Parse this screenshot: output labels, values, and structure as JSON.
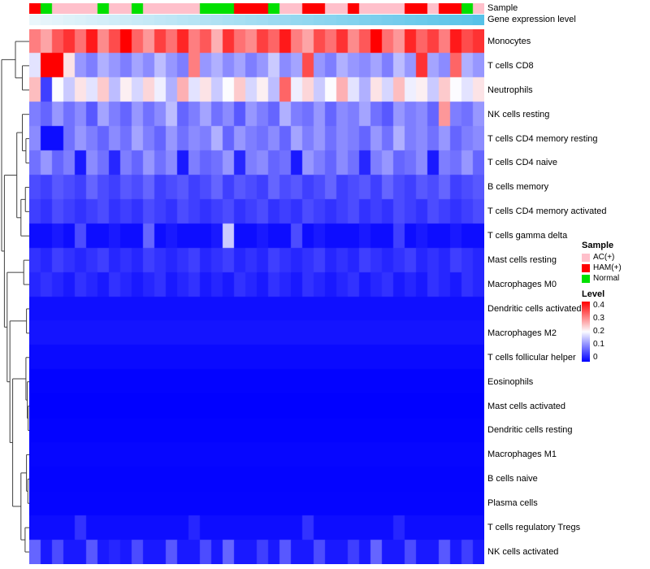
{
  "annotations": {
    "sample_label": "Sample",
    "gene_label": "Gene expression level",
    "sample_values": [
      "HAM(+)",
      "Normal",
      "AC(+)",
      "AC(+)",
      "AC(+)",
      "AC(+)",
      "Normal",
      "AC(+)",
      "AC(+)",
      "Normal",
      "AC(+)",
      "AC(+)",
      "AC(+)",
      "AC(+)",
      "AC(+)",
      "Normal",
      "Normal",
      "Normal",
      "HAM(+)",
      "HAM(+)",
      "HAM(+)",
      "Normal",
      "AC(+)",
      "AC(+)",
      "HAM(+)",
      "HAM(+)",
      "AC(+)",
      "AC(+)",
      "HAM(+)",
      "AC(+)",
      "AC(+)",
      "AC(+)",
      "AC(+)",
      "HAM(+)",
      "HAM(+)",
      "AC(+)",
      "HAM(+)",
      "HAM(+)",
      "Normal",
      "AC(+)"
    ],
    "gene_values": [
      0,
      0.03,
      0.05,
      0.08,
      0.1,
      0.13,
      0.15,
      0.18,
      0.2,
      0.23,
      0.25,
      0.28,
      0.3,
      0.33,
      0.35,
      0.38,
      0.4,
      0.43,
      0.45,
      0.48,
      0.5,
      0.53,
      0.55,
      0.58,
      0.6,
      0.63,
      0.65,
      0.68,
      0.7,
      0.73,
      0.75,
      0.78,
      0.8,
      0.83,
      0.85,
      0.88,
      0.9,
      0.93,
      0.95,
      1
    ],
    "gene_scale": {
      "low": "#EAF6FB",
      "high": "#56C2E8"
    }
  },
  "legend": {
    "sample": {
      "title": "Sample",
      "items": [
        {
          "label": "AC(+)",
          "color": "#FFC0CB"
        },
        {
          "label": "HAM(+)",
          "color": "#FF0000"
        },
        {
          "label": "Normal",
          "color": "#00E000"
        }
      ]
    },
    "level": {
      "title": "Level",
      "ticks": [
        "0.4",
        "0.3",
        "0.2",
        "0.1",
        "0"
      ]
    }
  },
  "chart_data": {
    "type": "heatmap",
    "n_cols": 40,
    "value_range": [
      0,
      0.4
    ],
    "colorscale": {
      "low": "#0000FF",
      "mid": "#FCFCFF",
      "high": "#FF0000",
      "midpoint": 0.2
    },
    "rows": [
      {
        "label": "Monocytes",
        "values": [
          0.3,
          0.27,
          0.33,
          0.36,
          0.31,
          0.38,
          0.29,
          0.34,
          0.4,
          0.32,
          0.28,
          0.35,
          0.31,
          0.37,
          0.3,
          0.33,
          0.26,
          0.36,
          0.31,
          0.29,
          0.35,
          0.32,
          0.38,
          0.3,
          0.27,
          0.34,
          0.31,
          0.36,
          0.29,
          0.33,
          0.4,
          0.31,
          0.28,
          0.37,
          0.32,
          0.35,
          0.3,
          0.38,
          0.34,
          0.36
        ]
      },
      {
        "label": "T cells CD8",
        "values": [
          0.18,
          0.4,
          0.4,
          0.22,
          0.12,
          0.1,
          0.14,
          0.12,
          0.1,
          0.13,
          0.11,
          0.15,
          0.12,
          0.1,
          0.3,
          0.12,
          0.14,
          0.11,
          0.13,
          0.1,
          0.12,
          0.16,
          0.11,
          0.13,
          0.34,
          0.12,
          0.1,
          0.14,
          0.12,
          0.11,
          0.13,
          0.1,
          0.15,
          0.12,
          0.36,
          0.13,
          0.11,
          0.32,
          0.14,
          0.12
        ]
      },
      {
        "label": "Neutrophils",
        "values": [
          0.25,
          0.05,
          0.2,
          0.16,
          0.22,
          0.18,
          0.24,
          0.15,
          0.21,
          0.17,
          0.23,
          0.19,
          0.14,
          0.26,
          0.18,
          0.22,
          0.16,
          0.2,
          0.24,
          0.17,
          0.21,
          0.15,
          0.32,
          0.19,
          0.23,
          0.16,
          0.2,
          0.26,
          0.18,
          0.14,
          0.22,
          0.17,
          0.25,
          0.19,
          0.21,
          0.16,
          0.24,
          0.2,
          0.18,
          0.22
        ]
      },
      {
        "label": "NK cells resting",
        "values": [
          0.1,
          0.08,
          0.12,
          0.09,
          0.11,
          0.07,
          0.13,
          0.1,
          0.08,
          0.12,
          0.09,
          0.11,
          0.15,
          0.08,
          0.1,
          0.13,
          0.09,
          0.11,
          0.07,
          0.12,
          0.1,
          0.08,
          0.14,
          0.1,
          0.09,
          0.12,
          0.08,
          0.11,
          0.1,
          0.13,
          0.09,
          0.07,
          0.12,
          0.1,
          0.11,
          0.08,
          0.28,
          0.1,
          0.09,
          0.12
        ]
      },
      {
        "label": "T cells CD4 memory resting",
        "values": [
          0.11,
          0.01,
          0.01,
          0.09,
          0.12,
          0.1,
          0.08,
          0.11,
          0.09,
          0.13,
          0.1,
          0.08,
          0.12,
          0.09,
          0.11,
          0.1,
          0.14,
          0.08,
          0.12,
          0.1,
          0.09,
          0.11,
          0.08,
          0.13,
          0.1,
          0.12,
          0.09,
          0.11,
          0.1,
          0.08,
          0.12,
          0.09,
          0.14,
          0.1,
          0.11,
          0.09,
          0.12,
          0.08,
          0.1,
          0.11
        ]
      },
      {
        "label": "T cells CD4 naive",
        "values": [
          0.09,
          0.12,
          0.08,
          0.1,
          0.02,
          0.11,
          0.09,
          0.03,
          0.1,
          0.08,
          0.12,
          0.09,
          0.11,
          0.02,
          0.1,
          0.08,
          0.09,
          0.12,
          0.03,
          0.1,
          0.11,
          0.08,
          0.09,
          0.02,
          0.12,
          0.1,
          0.08,
          0.11,
          0.09,
          0.03,
          0.1,
          0.12,
          0.08,
          0.09,
          0.11,
          0.02,
          0.1,
          0.09,
          0.12,
          0.08
        ]
      },
      {
        "label": "B cells memory",
        "values": [
          0.06,
          0.05,
          0.07,
          0.06,
          0.05,
          0.08,
          0.06,
          0.05,
          0.07,
          0.06,
          0.08,
          0.05,
          0.06,
          0.07,
          0.05,
          0.06,
          0.08,
          0.05,
          0.07,
          0.06,
          0.05,
          0.08,
          0.06,
          0.07,
          0.05,
          0.06,
          0.08,
          0.05,
          0.06,
          0.07,
          0.05,
          0.08,
          0.06,
          0.05,
          0.07,
          0.06,
          0.08,
          0.05,
          0.06,
          0.07
        ]
      },
      {
        "label": "T cells CD4 memory activated",
        "values": [
          0.05,
          0.04,
          0.06,
          0.05,
          0.04,
          0.05,
          0.06,
          0.04,
          0.05,
          0.04,
          0.06,
          0.05,
          0.04,
          0.06,
          0.05,
          0.04,
          0.05,
          0.06,
          0.04,
          0.05,
          0.06,
          0.04,
          0.05,
          0.04,
          0.06,
          0.05,
          0.04,
          0.05,
          0.06,
          0.04,
          0.05,
          0.04,
          0.06,
          0.05,
          0.04,
          0.06,
          0.05,
          0.04,
          0.05,
          0.06
        ]
      },
      {
        "label": "T cells gamma delta",
        "values": [
          0.01,
          0.01,
          0.02,
          0.01,
          0.06,
          0.01,
          0.01,
          0.02,
          0.01,
          0.01,
          0.08,
          0.01,
          0.02,
          0.01,
          0.01,
          0.01,
          0.02,
          0.16,
          0.01,
          0.01,
          0.02,
          0.01,
          0.01,
          0.06,
          0.01,
          0.02,
          0.01,
          0.01,
          0.01,
          0.02,
          0.01,
          0.01,
          0.05,
          0.01,
          0.02,
          0.01,
          0.01,
          0.02,
          0.01,
          0.01
        ]
      },
      {
        "label": "Mast cells resting",
        "values": [
          0.04,
          0.03,
          0.05,
          0.04,
          0.03,
          0.04,
          0.05,
          0.03,
          0.04,
          0.03,
          0.05,
          0.04,
          0.03,
          0.04,
          0.05,
          0.03,
          0.04,
          0.05,
          0.03,
          0.04,
          0.03,
          0.05,
          0.04,
          0.03,
          0.04,
          0.05,
          0.03,
          0.04,
          0.03,
          0.05,
          0.04,
          0.03,
          0.04,
          0.05,
          0.03,
          0.04,
          0.03,
          0.05,
          0.04,
          0.03
        ]
      },
      {
        "label": "Macrophages M0",
        "values": [
          0.03,
          0.04,
          0.03,
          0.02,
          0.04,
          0.03,
          0.02,
          0.04,
          0.03,
          0.02,
          0.03,
          0.04,
          0.02,
          0.03,
          0.04,
          0.02,
          0.03,
          0.02,
          0.04,
          0.03,
          0.02,
          0.04,
          0.03,
          0.02,
          0.04,
          0.03,
          0.02,
          0.03,
          0.04,
          0.02,
          0.03,
          0.04,
          0.02,
          0.03,
          0.02,
          0.04,
          0.03,
          0.02,
          0.04,
          0.03
        ]
      },
      {
        "label": "Dendritic cells activated",
        "values": 0.012
      },
      {
        "label": "Macrophages M2",
        "values": 0.016
      },
      {
        "label": "T cells follicular helper",
        "values": 0.008
      },
      {
        "label": "Eosinophils",
        "values": 0.002
      },
      {
        "label": "Mast cells activated",
        "values": 0.001
      },
      {
        "label": "Dendritic cells resting",
        "values": 0.002
      },
      {
        "label": "Macrophages M1",
        "values": 0.005
      },
      {
        "label": "B cells naive",
        "values": 0.003
      },
      {
        "label": "Plasma cells",
        "values": 0.004
      },
      {
        "label": "T cells regulatory  Tregs",
        "values": [
          0.01,
          0.01,
          0.01,
          0.01,
          0.04,
          0.01,
          0.01,
          0.01,
          0.01,
          0.01,
          0.01,
          0.01,
          0.01,
          0.01,
          0.03,
          0.01,
          0.01,
          0.01,
          0.01,
          0.01,
          0.01,
          0.01,
          0.01,
          0.01,
          0.04,
          0.01,
          0.01,
          0.01,
          0.01,
          0.01,
          0.01,
          0.01,
          0.03,
          0.01,
          0.01,
          0.01,
          0.01,
          0.01,
          0.01,
          0.01
        ]
      },
      {
        "label": "NK cells activated",
        "values": [
          0.08,
          0.02,
          0.06,
          0.02,
          0.02,
          0.07,
          0.02,
          0.03,
          0.02,
          0.06,
          0.02,
          0.02,
          0.07,
          0.02,
          0.02,
          0.06,
          0.02,
          0.08,
          0.02,
          0.02,
          0.05,
          0.02,
          0.07,
          0.02,
          0.02,
          0.06,
          0.02,
          0.02,
          0.05,
          0.02,
          0.08,
          0.02,
          0.02,
          0.06,
          0.02,
          0.02,
          0.07,
          0.02,
          0.05,
          0.02
        ]
      }
    ],
    "row_dendrogram": {
      "h": 1,
      "c": [
        {
          "h": 0.5,
          "c": [
            {
              "leaf": 0
            },
            {
              "h": 0.25,
              "c": [
                {
                  "leaf": 1
                },
                {
                  "leaf": 2
                }
              ]
            }
          ]
        },
        {
          "h": 0.9,
          "c": [
            {
              "h": 0.45,
              "c": [
                {
                  "h": 0.25,
                  "c": [
                    {
                      "leaf": 3
                    },
                    {
                      "h": 0.12,
                      "c": [
                        {
                          "leaf": 4
                        },
                        {
                          "leaf": 5
                        }
                      ]
                    }
                  ]
                },
                {
                  "h": 0.3,
                  "c": [
                    {
                      "h": 0.14,
                      "c": [
                        {
                          "leaf": 6
                        },
                        {
                          "leaf": 7
                        }
                      ]
                    },
                    {
                      "leaf": 8
                    }
                  ]
                }
              ]
            },
            {
              "h": 0.8,
              "c": [
                {
                  "h": 0.2,
                  "c": [
                    {
                      "leaf": 9
                    },
                    {
                      "leaf": 10
                    }
                  ]
                },
                {
                  "h": 0.7,
                  "c": [
                    {
                      "h": 0.1,
                      "c": [
                        {
                          "leaf": 11
                        },
                        {
                          "leaf": 12
                        }
                      ]
                    },
                    {
                      "h": 0.6,
                      "c": [
                        {
                          "h": 0.12,
                          "c": [
                            {
                              "leaf": 13
                            },
                            {
                              "h": 0.07,
                              "c": [
                                {
                                  "leaf": 14
                                },
                                {
                                  "h": 0.04,
                                  "c": [
                                    {
                                      "leaf": 15
                                    },
                                    {
                                      "leaf": 16
                                    }
                                  ]
                                }
                              ]
                            }
                          ]
                        },
                        {
                          "h": 0.3,
                          "c": [
                            {
                              "h": 0.1,
                              "c": [
                                {
                                  "leaf": 17
                                },
                                {
                                  "h": 0.05,
                                  "c": [
                                    {
                                      "leaf": 18
                                    },
                                    {
                                      "leaf": 19
                                    }
                                  ]
                                }
                              ]
                            },
                            {
                              "h": 0.15,
                              "c": [
                                {
                                  "leaf": 20
                                },
                                {
                                  "leaf": 21
                                }
                              ]
                            }
                          ]
                        }
                      ]
                    }
                  ]
                }
              ]
            }
          ]
        }
      ]
    }
  }
}
